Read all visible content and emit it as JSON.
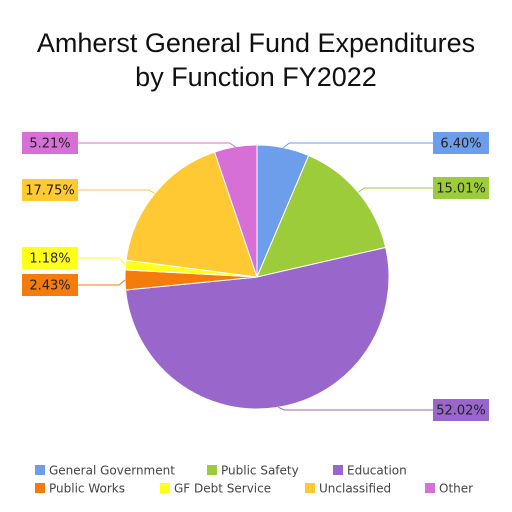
{
  "chart_data": {
    "type": "pie",
    "title": "Amherst General Fund Expenditures by Function FY2022",
    "categories": [
      "General Government",
      "Public Safety",
      "Education",
      "Public Works",
      "GF Debt Service",
      "Unclassified",
      "Other"
    ],
    "values": [
      6.4,
      15.01,
      52.02,
      2.43,
      1.18,
      17.75,
      5.21
    ],
    "value_labels": [
      "6.40%",
      "15.01%",
      "52.02%",
      "2.43%",
      "1.18%",
      "17.75%",
      "5.21%"
    ],
    "colors": [
      "#6d9eeb",
      "#9ccc3a",
      "#9966cc",
      "#f57c0c",
      "#ffff1a",
      "#ffc933",
      "#d670d6"
    ],
    "legend": "bottom"
  }
}
